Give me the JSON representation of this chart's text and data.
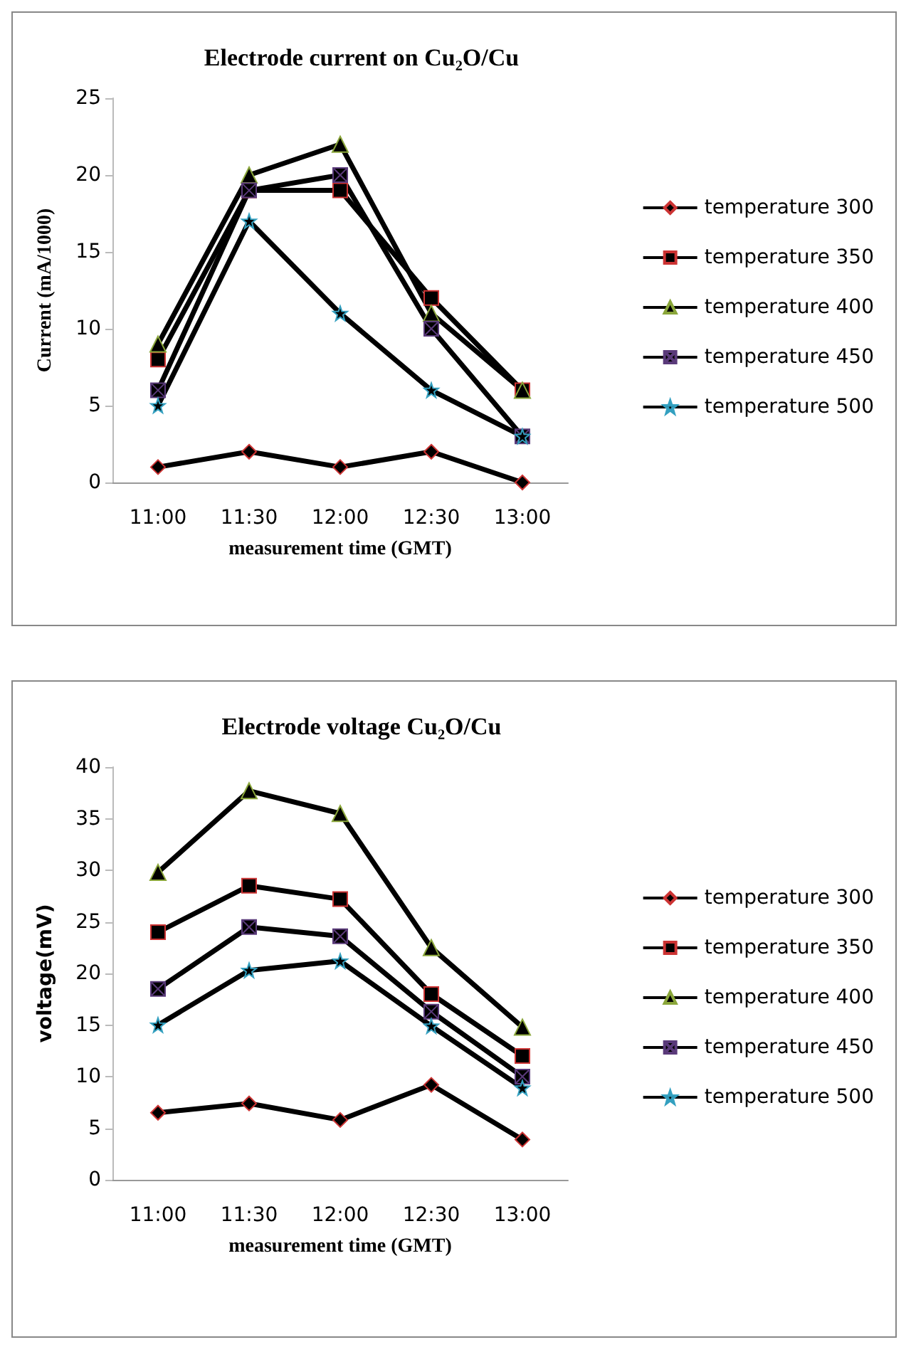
{
  "chart_data": [
    {
      "type": "line",
      "title": "Electrode current on Cu₂O/Cu",
      "xlabel": "measurement time (GMT)",
      "ylabel": "Current (mA/1000)",
      "categories": [
        "11:00",
        "11:30",
        "12:00",
        "12:30",
        "13:00"
      ],
      "ylim": [
        0,
        25
      ],
      "yticks": [
        0,
        5,
        10,
        15,
        20,
        25
      ],
      "grid": false,
      "legend": "right",
      "series": [
        {
          "name": "temperature 300",
          "color": "#000000",
          "marker": "diamond",
          "values": [
            1,
            2,
            1,
            2,
            0
          ]
        },
        {
          "name": "temperature 350",
          "color": "#000000",
          "marker": "square",
          "values": [
            8,
            19,
            19,
            12,
            6
          ]
        },
        {
          "name": "temperature 400",
          "color": "#000000",
          "marker": "triangle",
          "values": [
            9,
            20,
            22,
            11,
            6
          ]
        },
        {
          "name": "temperature 450",
          "color": "#000000",
          "marker": "cross",
          "values": [
            6,
            19,
            20,
            10,
            3
          ]
        },
        {
          "name": "temperature 500",
          "color": "#000000",
          "marker": "star",
          "values": [
            5,
            17,
            11,
            6,
            3
          ]
        }
      ]
    },
    {
      "type": "line",
      "title": "Electrode voltage Cu₂O/Cu",
      "xlabel": "measurement time (GMT)",
      "ylabel": "voltage(mV)",
      "categories": [
        "11:00",
        "11:30",
        "12:00",
        "12:30",
        "13:00"
      ],
      "ylim": [
        0,
        40
      ],
      "yticks": [
        0,
        5,
        10,
        15,
        20,
        25,
        30,
        35,
        40
      ],
      "grid": false,
      "legend": "right",
      "series": [
        {
          "name": "temperature 300",
          "color": "#000000",
          "marker": "diamond",
          "values": [
            6.5,
            7.4,
            5.8,
            9.2,
            3.9
          ]
        },
        {
          "name": "temperature 350",
          "color": "#000000",
          "marker": "square",
          "values": [
            24,
            28.5,
            27.2,
            18,
            12
          ]
        },
        {
          "name": "temperature 400",
          "color": "#000000",
          "marker": "triangle",
          "values": [
            29.8,
            37.7,
            35.5,
            22.5,
            14.8
          ]
        },
        {
          "name": "temperature 450",
          "color": "#000000",
          "marker": "cross",
          "values": [
            18.5,
            24.5,
            23.6,
            16.3,
            10
          ]
        },
        {
          "name": "temperature 500",
          "color": "#000000",
          "marker": "star",
          "values": [
            15,
            20.3,
            21.2,
            14.9,
            8.9
          ]
        }
      ]
    }
  ]
}
